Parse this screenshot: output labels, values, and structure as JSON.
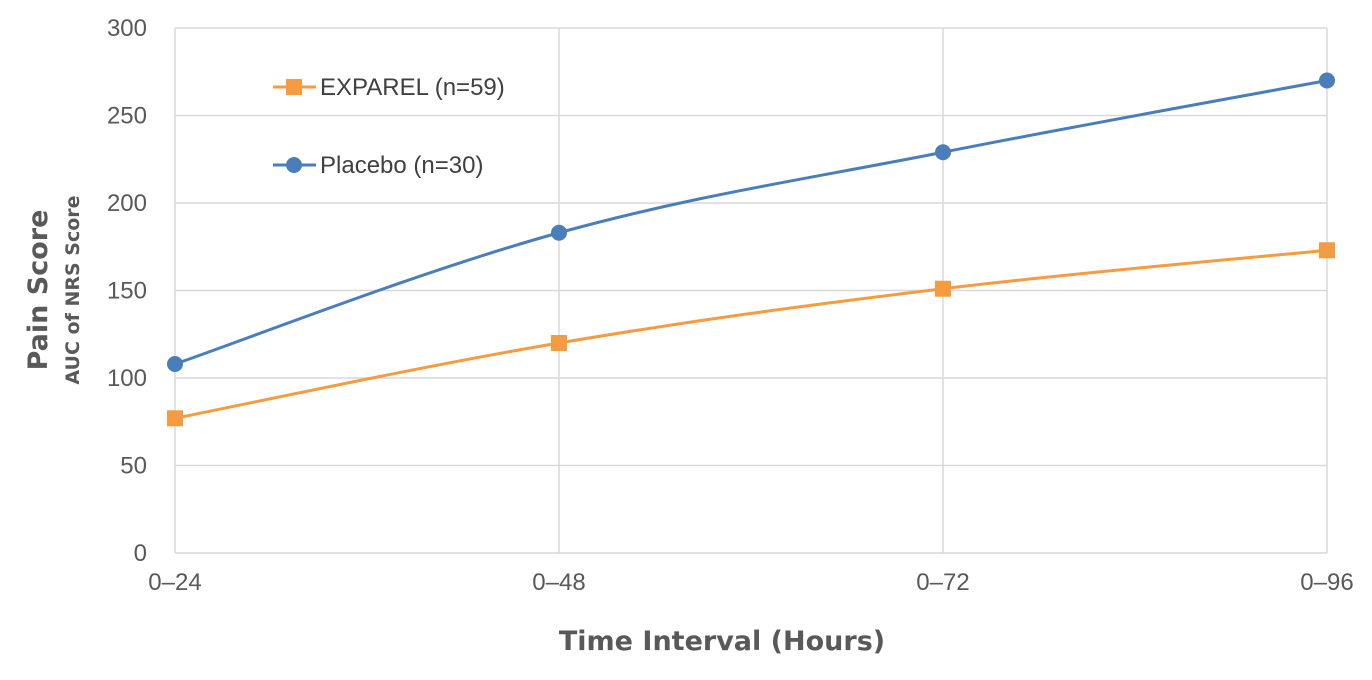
{
  "chart_data": {
    "type": "line",
    "categories": [
      "0–24",
      "0–48",
      "0–72",
      "0–96"
    ],
    "series": [
      {
        "name": "EXPAREL (n=59)",
        "values": [
          77,
          120,
          151,
          173
        ],
        "color": "#F59B42",
        "marker": "square"
      },
      {
        "name": "Placebo (n=30)",
        "values": [
          108,
          183,
          229,
          270
        ],
        "color": "#4A7EBB",
        "marker": "circle"
      }
    ],
    "ylim": [
      0,
      300
    ],
    "yticks": [
      0,
      50,
      100,
      150,
      200,
      250,
      300
    ],
    "xlabel": "Time Interval (Hours)",
    "ylabel": "Pain Score",
    "ylabel_sub": "AUC of NRS Score",
    "grid": true,
    "legend_position": "top-left"
  }
}
